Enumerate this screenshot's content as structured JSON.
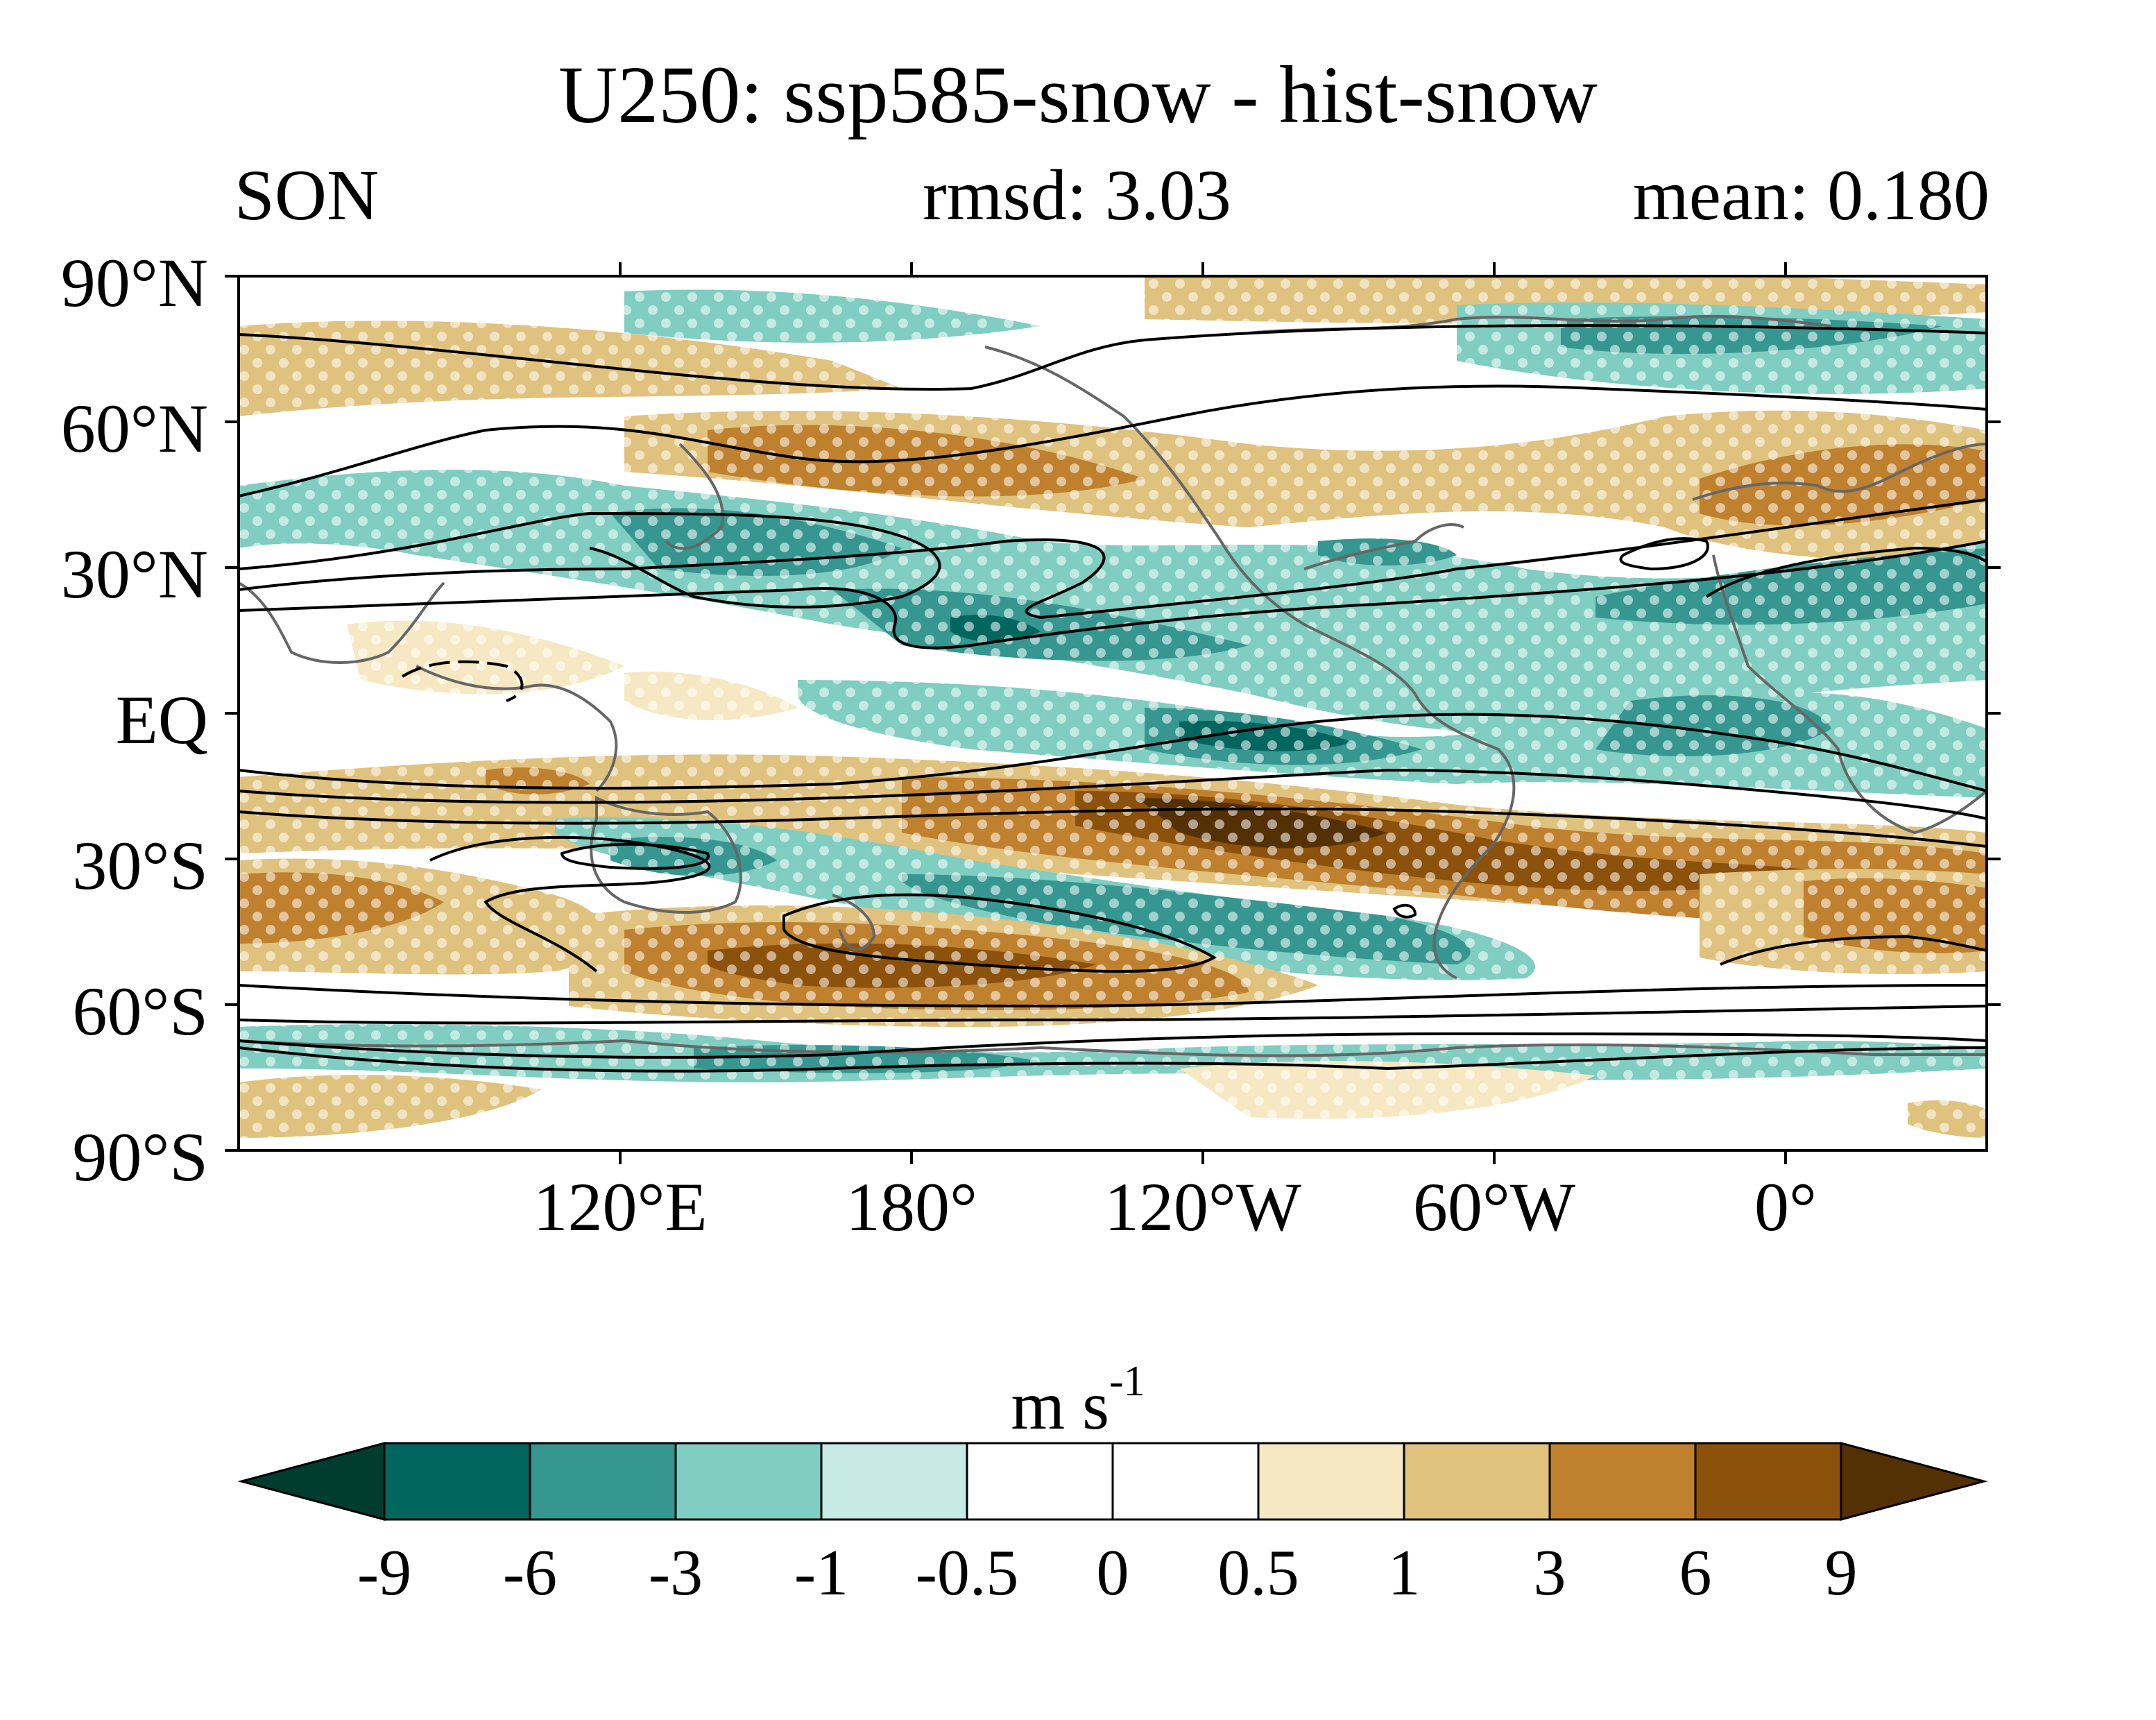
{
  "title": "U250: ssp585-snow - hist-snow",
  "subtitle_left": "SON",
  "subtitle_center": "rmsd: 3.03",
  "subtitle_right": "mean: 0.180",
  "units": {
    "base": "m s",
    "exponent": "-1"
  },
  "lat_ticks": [
    "90°N",
    "60°N",
    "30°N",
    "EQ",
    "30°S",
    "60°S",
    "90°S"
  ],
  "lon_ticks": [
    "120°E",
    "180°",
    "120°W",
    "60°W",
    "0°"
  ],
  "colorbar": {
    "levels": [
      "-9",
      "-6",
      "-3",
      "-1",
      "-0.5",
      "0",
      "0.5",
      "1",
      "3",
      "6",
      "9"
    ],
    "colors": [
      "#003c30",
      "#01665e",
      "#35978f",
      "#80cdc1",
      "#c7eae5",
      "#ffffff",
      "#ffffff",
      "#f6e8c3",
      "#dfc27d",
      "#bf812d",
      "#8c510a",
      "#543005"
    ]
  },
  "map": {
    "lat_range": [
      -90,
      90
    ],
    "lon_range": [
      40,
      400
    ],
    "overlay": "stippling",
    "contours": "black"
  }
}
